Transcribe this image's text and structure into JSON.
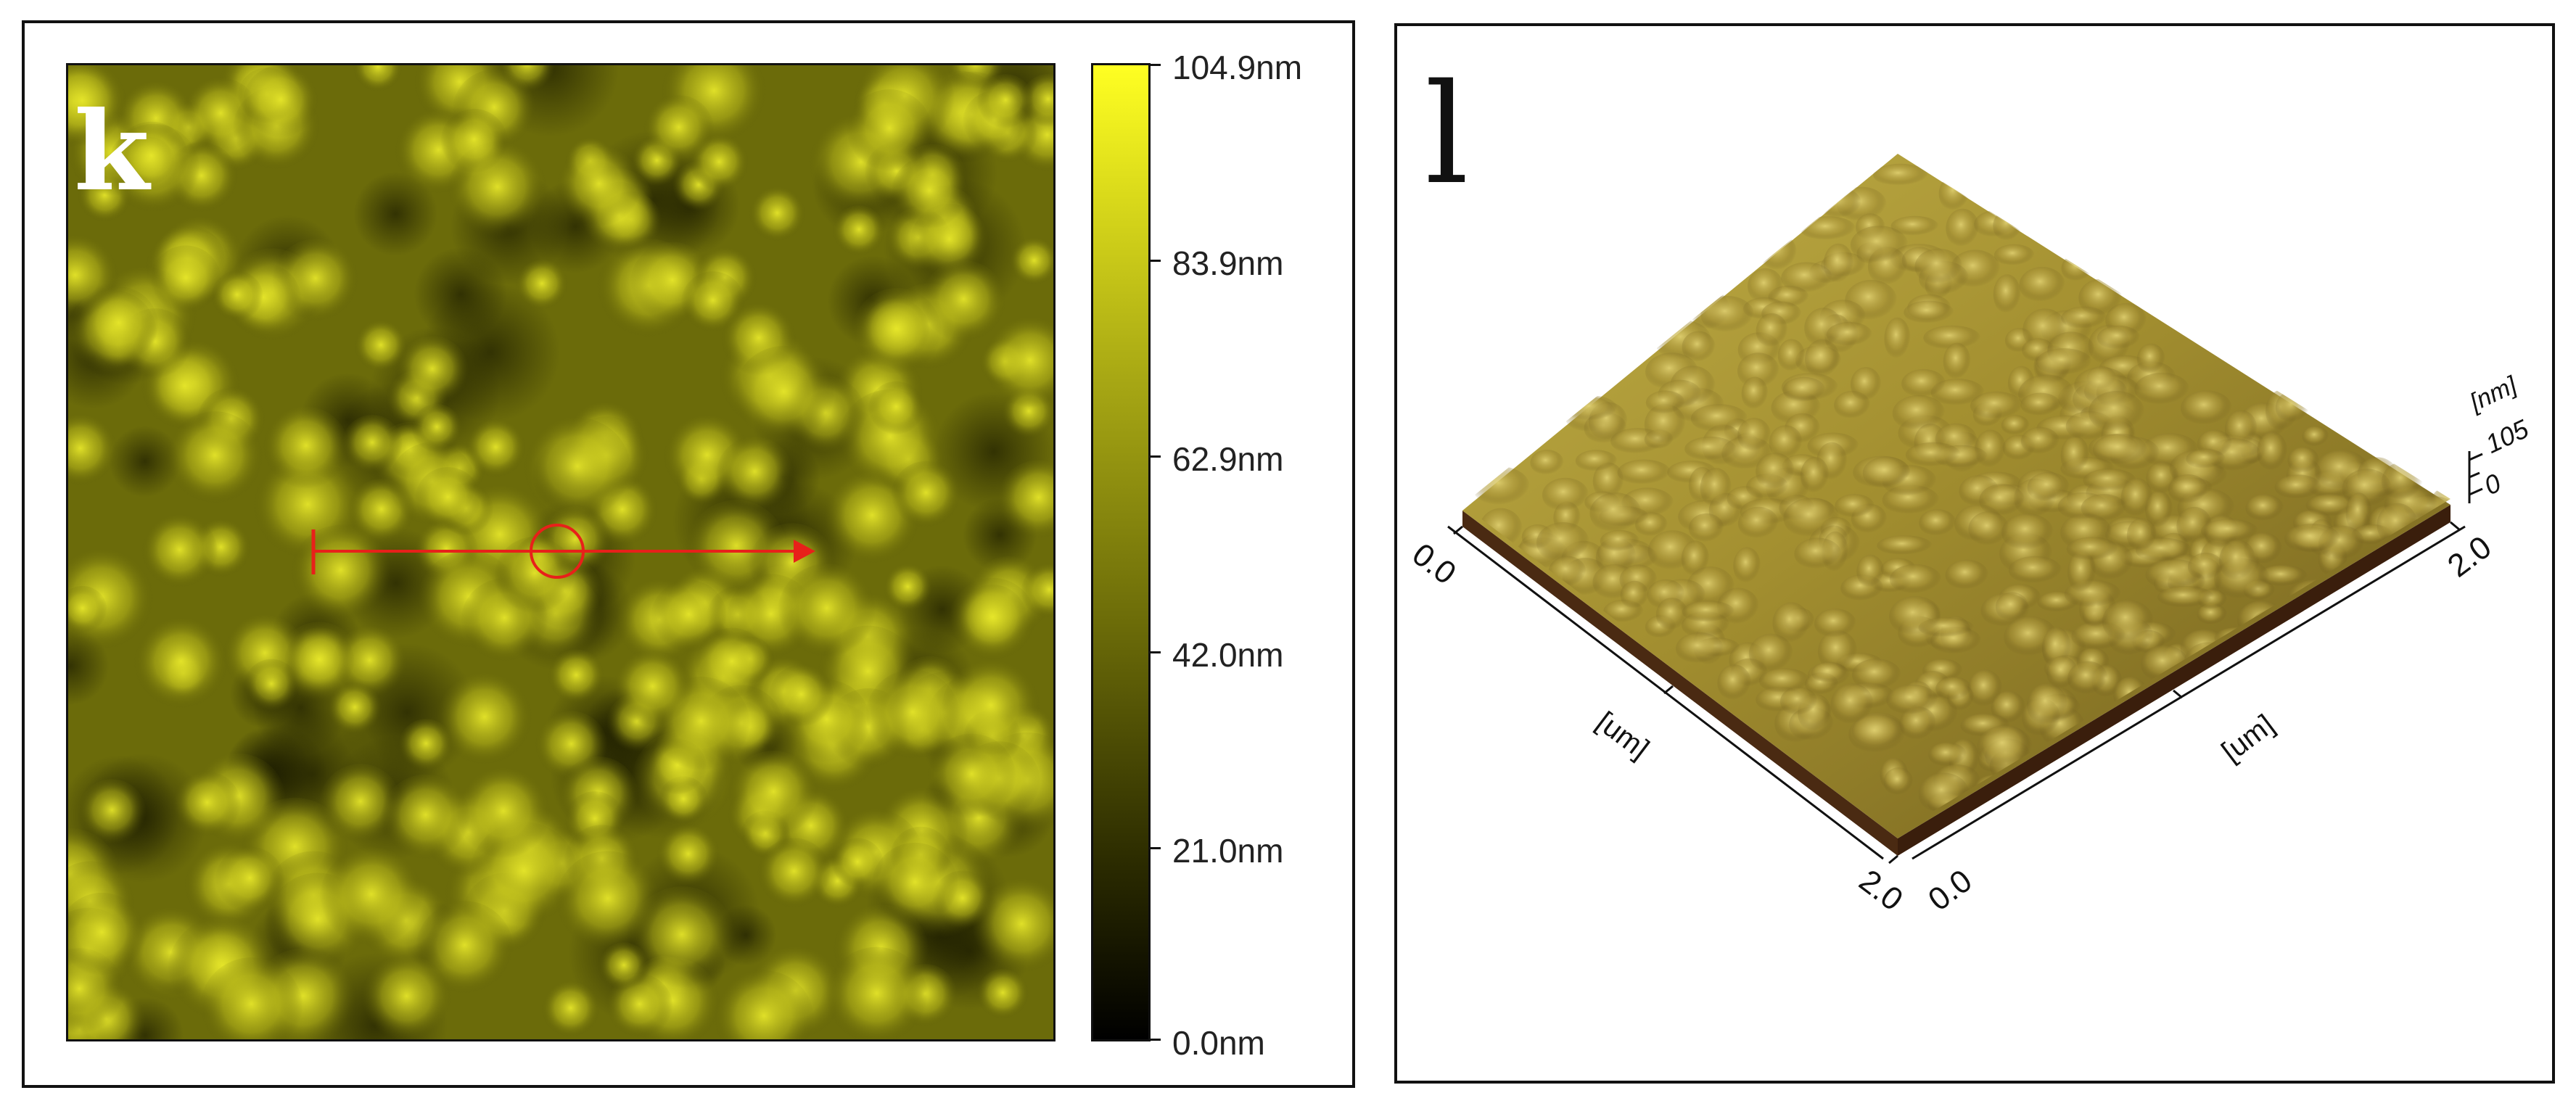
{
  "panel_k": {
    "letter": "k",
    "colorbar_labels": [
      "104.9nm",
      "83.9nm",
      "62.9nm",
      "42.0nm",
      "21.0nm",
      "0.0nm"
    ],
    "line_profile_color": "#e8201a"
  },
  "panel_l": {
    "letter": "l",
    "axis_x_start": "0.0",
    "axis_x_end": "2.0",
    "axis_x_unit": "[um]",
    "axis_y_start": "0.0",
    "axis_y_end": "2.0",
    "axis_y_unit": "[um]",
    "z_unit": "[nm]",
    "z_max": "105",
    "z_min": "0"
  },
  "colors": {
    "map_base": "#5a5a06",
    "grain_highlight": "#e6e62a",
    "surface_3d": "#9a8a2e",
    "substrate_edge": "#4a2a12"
  }
}
